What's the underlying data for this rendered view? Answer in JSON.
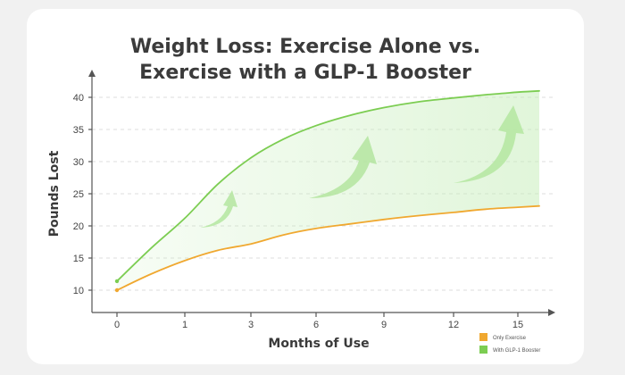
{
  "chart_data": {
    "type": "line",
    "title_lines": [
      "Weight Loss: Exercise Alone vs.",
      "Exercise with a GLP-1 Booster"
    ],
    "xlabel": "Months of Use",
    "ylabel": "Pounds Lost",
    "x_ticks": [
      "0",
      "1",
      "3",
      "6",
      "9",
      "12",
      "15"
    ],
    "y_ticks": [
      10,
      15,
      20,
      25,
      30,
      35,
      40
    ],
    "ylim": [
      8,
      44
    ],
    "grid": "horizontal dashed",
    "legend_position": "bottom-right",
    "shaded_region": "between series",
    "series": [
      {
        "name": "Only Exercise",
        "color": "#f0a830",
        "points": [
          {
            "x": 0,
            "y": 10.0
          },
          {
            "x": 0.5,
            "y": 12.5
          },
          {
            "x": 1,
            "y": 14.6
          },
          {
            "x": 2,
            "y": 16.2
          },
          {
            "x": 3,
            "y": 17.2
          },
          {
            "x": 4.5,
            "y": 18.6
          },
          {
            "x": 6,
            "y": 19.6
          },
          {
            "x": 7.5,
            "y": 20.3
          },
          {
            "x": 9,
            "y": 21.0
          },
          {
            "x": 10.5,
            "y": 21.6
          },
          {
            "x": 12,
            "y": 22.1
          },
          {
            "x": 13.5,
            "y": 22.6
          },
          {
            "x": 15,
            "y": 22.9
          },
          {
            "x": 16,
            "y": 23.1
          }
        ]
      },
      {
        "name": "With GLP-1 Booster",
        "color": "#7ccd52",
        "points": [
          {
            "x": 0,
            "y": 11.4
          },
          {
            "x": 0.5,
            "y": 16.5
          },
          {
            "x": 1,
            "y": 21.2
          },
          {
            "x": 2,
            "y": 26.5
          },
          {
            "x": 3,
            "y": 30.6
          },
          {
            "x": 4.5,
            "y": 33.5
          },
          {
            "x": 6,
            "y": 35.6
          },
          {
            "x": 7.5,
            "y": 37.2
          },
          {
            "x": 9,
            "y": 38.4
          },
          {
            "x": 10.5,
            "y": 39.3
          },
          {
            "x": 12,
            "y": 39.9
          },
          {
            "x": 13.5,
            "y": 40.4
          },
          {
            "x": 15,
            "y": 40.8
          },
          {
            "x": 16,
            "y": 41.0
          }
        ]
      }
    ]
  }
}
